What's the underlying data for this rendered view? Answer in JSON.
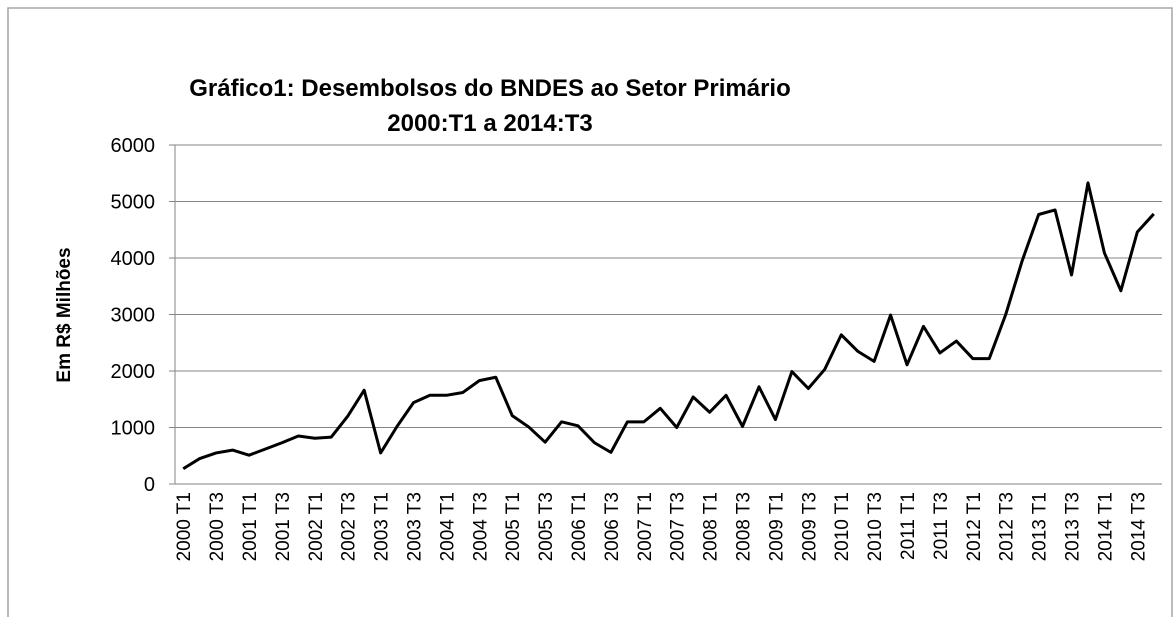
{
  "chart_data": {
    "type": "line",
    "title": [
      "Gráfico1: Desembolsos do BNDES ao Setor Primário",
      "2000:T1 a 2014:T3"
    ],
    "y_label": "Em R$ Milhões",
    "categories": [
      "2000 T1",
      null,
      "2000 T3",
      null,
      "2001 T1",
      null,
      "2001 T3",
      null,
      "2002 T1",
      null,
      "2002 T3",
      null,
      "2003 T1",
      null,
      "2003 T3",
      null,
      "2004 T1",
      null,
      "2004 T3",
      null,
      "2005 T1",
      null,
      "2005 T3",
      null,
      "2006 T1",
      null,
      "2006 T3",
      null,
      "2007 T1",
      null,
      "2007 T3",
      null,
      "2008 T1",
      null,
      "2008 T3",
      null,
      "2009 T1",
      null,
      "2009 T3",
      null,
      "2010 T1",
      null,
      "2010 T3",
      null,
      "2011 T1",
      null,
      "2011 T3",
      null,
      "2012 T1",
      null,
      "2012 T3",
      null,
      "2013 T1",
      null,
      "2013 T3",
      null,
      "2014 T1",
      null,
      "2014 T3",
      null
    ],
    "values": [
      270,
      450,
      550,
      600,
      510,
      620,
      730,
      850,
      810,
      830,
      1200,
      1660,
      550,
      1020,
      1440,
      1570,
      1570,
      1620,
      1830,
      1890,
      1210,
      1010,
      740,
      1100,
      1030,
      730,
      560,
      1100,
      1100,
      1340,
      1000,
      1540,
      1270,
      1570,
      1020,
      1720,
      1140,
      1990,
      1690,
      2030,
      2640,
      2350,
      2170,
      2990,
      2110,
      2790,
      2320,
      2530,
      2220,
      2220,
      3000,
      3950,
      4770,
      4850,
      3700,
      5330,
      4090,
      3420,
      4460,
      4780
    ],
    "color": "#000000",
    "ylim": [
      0,
      6000
    ],
    "yticks": [
      0,
      1000,
      2000,
      3000,
      4000,
      5000,
      6000
    ],
    "grid": true
  }
}
